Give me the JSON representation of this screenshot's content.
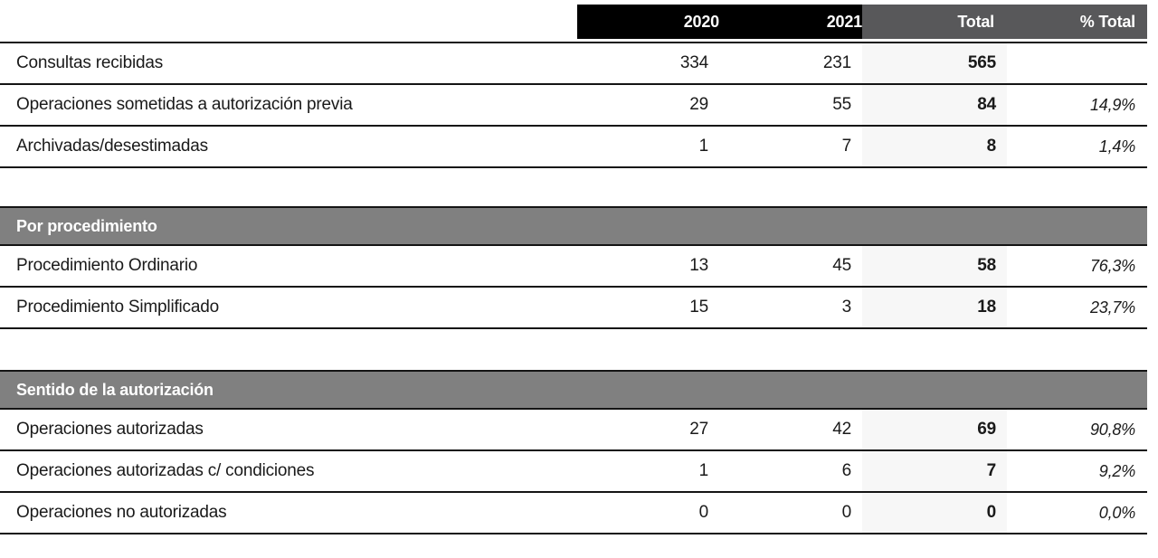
{
  "columns": {
    "y2020": "2020",
    "y2021": "2021",
    "total": "Total",
    "pct_total": "% Total"
  },
  "sections": [
    {
      "rows": [
        {
          "label": "Consultas recibidas",
          "v2020": "334",
          "v2021": "231",
          "total": "565",
          "pct": ""
        },
        {
          "label": "Operaciones sometidas a autorización previa",
          "v2020": "29",
          "v2021": "55",
          "total": "84",
          "pct": "14,9%"
        },
        {
          "label": "Archivadas/desestimadas",
          "v2020": "1",
          "v2021": "7",
          "total": "8",
          "pct": "1,4%"
        }
      ]
    },
    {
      "title": "Por procedimiento",
      "rows": [
        {
          "label": "Procedimiento Ordinario",
          "v2020": "13",
          "v2021": "45",
          "total": "58",
          "pct": "76,3%"
        },
        {
          "label": "Procedimiento Simplificado",
          "v2020": "15",
          "v2021": "3",
          "total": "18",
          "pct": "23,7%"
        }
      ]
    },
    {
      "title": "Sentido de la autorización",
      "rows": [
        {
          "label": "Operaciones autorizadas",
          "v2020": "27",
          "v2021": "42",
          "total": "69",
          "pct": "90,8%"
        },
        {
          "label": "Operaciones autorizadas c/ condiciones",
          "v2020": "1",
          "v2021": "6",
          "total": "7",
          "pct": "9,2%"
        },
        {
          "label": "Operaciones no autorizadas",
          "v2020": "0",
          "v2021": "0",
          "total": "0",
          "pct": "0,0%"
        }
      ]
    }
  ],
  "colors": {
    "header_black": "#000000",
    "header_gray": "#58585a",
    "section_gray": "#808080",
    "total_column_band": "#f7f7f7",
    "line": "#141414",
    "text": "#1a1a1a"
  }
}
